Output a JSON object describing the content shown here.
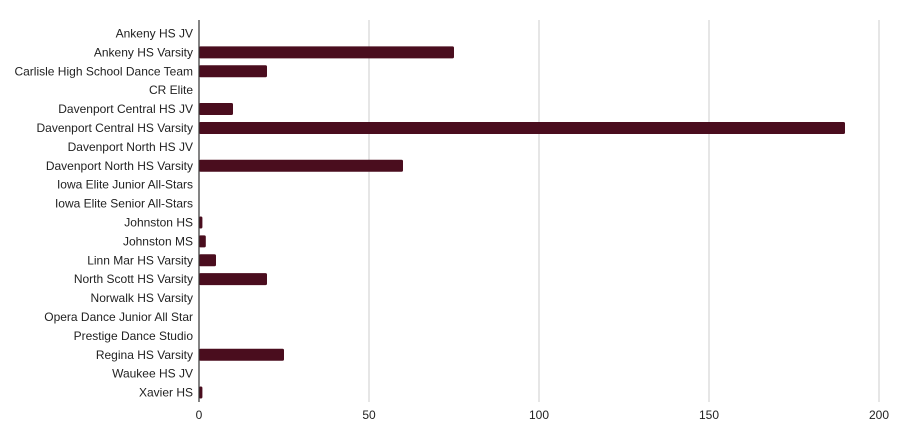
{
  "chart_data": {
    "type": "bar",
    "orientation": "horizontal",
    "categories": [
      "Ankeny HS JV",
      "Ankeny HS Varsity",
      "Carlisle High School Dance Team",
      "CR Elite",
      "Davenport Central HS JV",
      "Davenport Central HS Varsity",
      "Davenport North HS JV",
      "Davenport North HS Varsity",
      "Iowa Elite Junior All-Stars",
      "Iowa Elite Senior All-Stars",
      "Johnston HS",
      "Johnston MS",
      "Linn Mar HS Varsity",
      "North Scott HS Varsity",
      "Norwalk HS Varsity",
      "Opera Dance Junior All Star",
      "Prestige Dance Studio",
      "Regina HS Varsity",
      "Waukee HS JV",
      "Xavier HS"
    ],
    "values": [
      0,
      75,
      20,
      0,
      10,
      190,
      0,
      60,
      0,
      0,
      1,
      2,
      5,
      20,
      0,
      0,
      0,
      25,
      0,
      1
    ],
    "xlim": [
      0,
      200
    ],
    "xticks": [
      0,
      50,
      100,
      150,
      200
    ],
    "grid": true,
    "bar_color": "#4a0d1e",
    "title": "",
    "xlabel": "",
    "ylabel": ""
  }
}
